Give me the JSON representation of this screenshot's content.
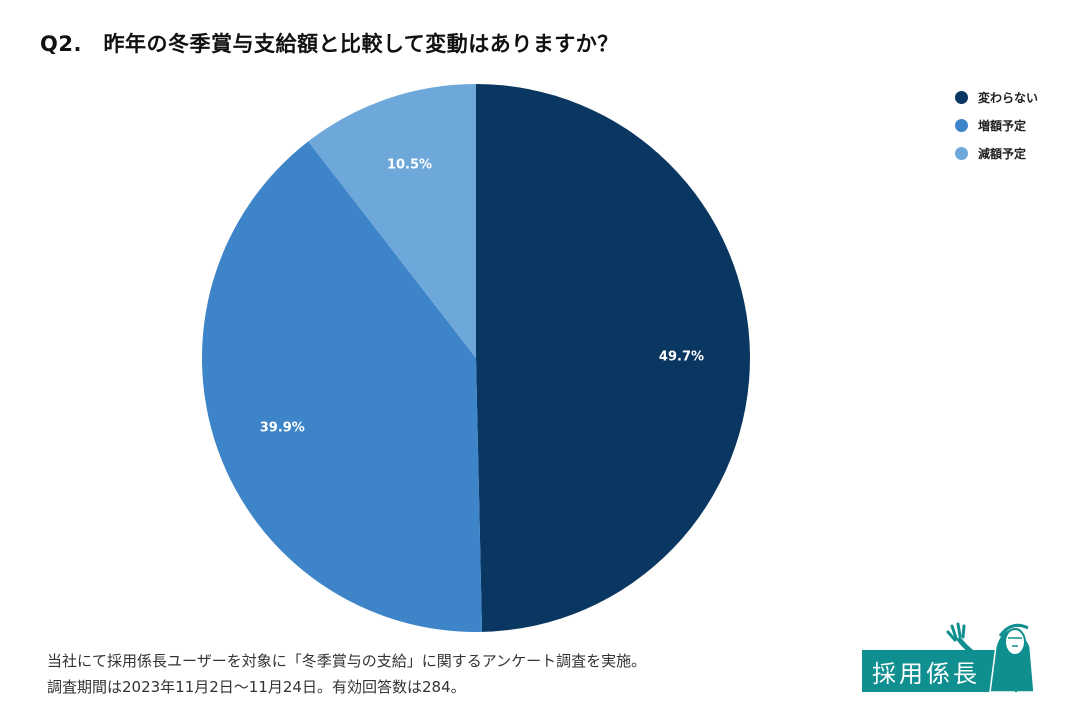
{
  "title": "Q2.　昨年の冬季賞与支給額と比較して変動はありますか？",
  "chart_data": {
    "type": "pie",
    "title": "Q2.　昨年の冬季賞与支給額と比較して変動はありますか？",
    "legend_position": "top-right",
    "start_angle_deg": 0,
    "direction": "clockwise",
    "slices": [
      {
        "label": "変わらない",
        "value": 49.7,
        "display": "49.7%",
        "color": "#0a3761"
      },
      {
        "label": "増額予定",
        "value": 39.9,
        "display": "39.9%",
        "color": "#3e84c8"
      },
      {
        "label": "減額予定",
        "value": 10.5,
        "display": "10.5%",
        "color": "#6ea8db"
      }
    ]
  },
  "footnote": {
    "line1": "当社にて採用係長ユーザーを対象に「冬季賞与の支給」に関するアンケート調査を実施。",
    "line2": "調査期間は2023年11月2日〜11月24日。有効回答数は284。"
  },
  "logo": {
    "text": "採用係長",
    "color": "#0f8f8f",
    "icon": "waving-man-icon"
  }
}
